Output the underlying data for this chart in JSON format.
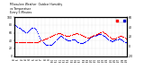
{
  "background_color": "#ffffff",
  "grid_color": "#c8c8c8",
  "blue_color": "#0000ff",
  "red_color": "#ff0000",
  "legend_red_color": "#ff0000",
  "legend_blue_color": "#0000cc",
  "title_text": "Milwaukee Weather  Outdoor Humidity",
  "subtitle_text": "vs Temperature",
  "dot_size": 0.8,
  "figsize": [
    1.6,
    0.87
  ],
  "dpi": 100,
  "blue_x": [
    0,
    1,
    2,
    3,
    4,
    5,
    6,
    7,
    8,
    9,
    10,
    11,
    12,
    13,
    14,
    15,
    16,
    17,
    18,
    19,
    20,
    21,
    22,
    23,
    24,
    25,
    26,
    27,
    28,
    29,
    30,
    31,
    32,
    33,
    34,
    35,
    36,
    37,
    38,
    39,
    40,
    41,
    42,
    43,
    44,
    45,
    46,
    47,
    48,
    49,
    50,
    51,
    52,
    53,
    54,
    55,
    56,
    57,
    58,
    59,
    60,
    61,
    62,
    63,
    64,
    65,
    66,
    67,
    68,
    69,
    70,
    71,
    72,
    73,
    74,
    75,
    76,
    77,
    78,
    79,
    80,
    81,
    82,
    83,
    84,
    85,
    86,
    87,
    88,
    89,
    90,
    91,
    92,
    93,
    94,
    95,
    96,
    97,
    98,
    99,
    100,
    101,
    102,
    103,
    104,
    105,
    106,
    107,
    108,
    109,
    110
  ],
  "blue_y": [
    82,
    80,
    78,
    75,
    73,
    72,
    70,
    68,
    66,
    65,
    63,
    62,
    62,
    63,
    65,
    67,
    70,
    72,
    73,
    72,
    70,
    67,
    63,
    58,
    53,
    48,
    44,
    40,
    37,
    34,
    32,
    30,
    29,
    28,
    28,
    29,
    30,
    32,
    34,
    36,
    39,
    42,
    45,
    48,
    50,
    51,
    51,
    50,
    48,
    46,
    44,
    42,
    41,
    40,
    40,
    41,
    42,
    43,
    43,
    42,
    41,
    39,
    37,
    35,
    34,
    33,
    33,
    34,
    35,
    37,
    39,
    41,
    43,
    45,
    47,
    49,
    50,
    51,
    52,
    53,
    54,
    55,
    56,
    57,
    57,
    56,
    55,
    53,
    51,
    49,
    47,
    45,
    43,
    41,
    40,
    39,
    39,
    40,
    41,
    42,
    43,
    44,
    45,
    45,
    44,
    43,
    41,
    39,
    37,
    35,
    33
  ],
  "red_x": [
    0,
    1,
    2,
    3,
    4,
    5,
    6,
    7,
    8,
    9,
    10,
    11,
    12,
    13,
    14,
    15,
    16,
    17,
    18,
    19,
    20,
    21,
    22,
    23,
    24,
    25,
    26,
    27,
    28,
    29,
    30,
    31,
    32,
    33,
    34,
    35,
    36,
    37,
    38,
    39,
    40,
    41,
    42,
    43,
    44,
    45,
    46,
    47,
    48,
    49,
    50,
    51,
    52,
    53,
    54,
    55,
    56,
    57,
    58,
    59,
    60,
    61,
    62,
    63,
    64,
    65,
    66,
    67,
    68,
    69,
    70,
    71,
    72,
    73,
    74,
    75,
    76,
    77,
    78,
    79,
    80,
    81,
    82,
    83,
    84,
    85,
    86,
    87,
    88,
    89,
    90,
    91,
    92,
    93,
    94,
    95,
    96,
    97,
    98,
    99,
    100,
    101,
    102,
    103,
    104,
    105,
    106,
    107,
    108,
    109,
    110
  ],
  "red_y": [
    8,
    8,
    8,
    8,
    8,
    8,
    8,
    8,
    8,
    8,
    8,
    8,
    8,
    8,
    8,
    8,
    8,
    8,
    8,
    8,
    8,
    8,
    9,
    9,
    10,
    11,
    12,
    13,
    14,
    15,
    16,
    17,
    17,
    18,
    19,
    20,
    21,
    22,
    23,
    24,
    25,
    26,
    27,
    27,
    27,
    27,
    26,
    25,
    24,
    23,
    22,
    21,
    21,
    21,
    22,
    23,
    24,
    25,
    26,
    26,
    27,
    27,
    27,
    26,
    25,
    24,
    23,
    22,
    21,
    20,
    19,
    18,
    18,
    18,
    19,
    20,
    21,
    22,
    23,
    24,
    25,
    26,
    27,
    28,
    29,
    29,
    30,
    29,
    28,
    27,
    25,
    23,
    21,
    19,
    18,
    17,
    16,
    16,
    16,
    17,
    18,
    19,
    20,
    21,
    21,
    21,
    20,
    19,
    18,
    16,
    15
  ],
  "xlim": [
    0,
    110
  ],
  "ylim": [
    0,
    100
  ],
  "n_xticks": 30,
  "yticks": [
    0,
    20,
    40,
    60,
    80,
    100
  ],
  "right_yticks": [
    -20,
    0,
    20,
    40,
    60
  ],
  "ylim_right": [
    -20,
    60
  ]
}
